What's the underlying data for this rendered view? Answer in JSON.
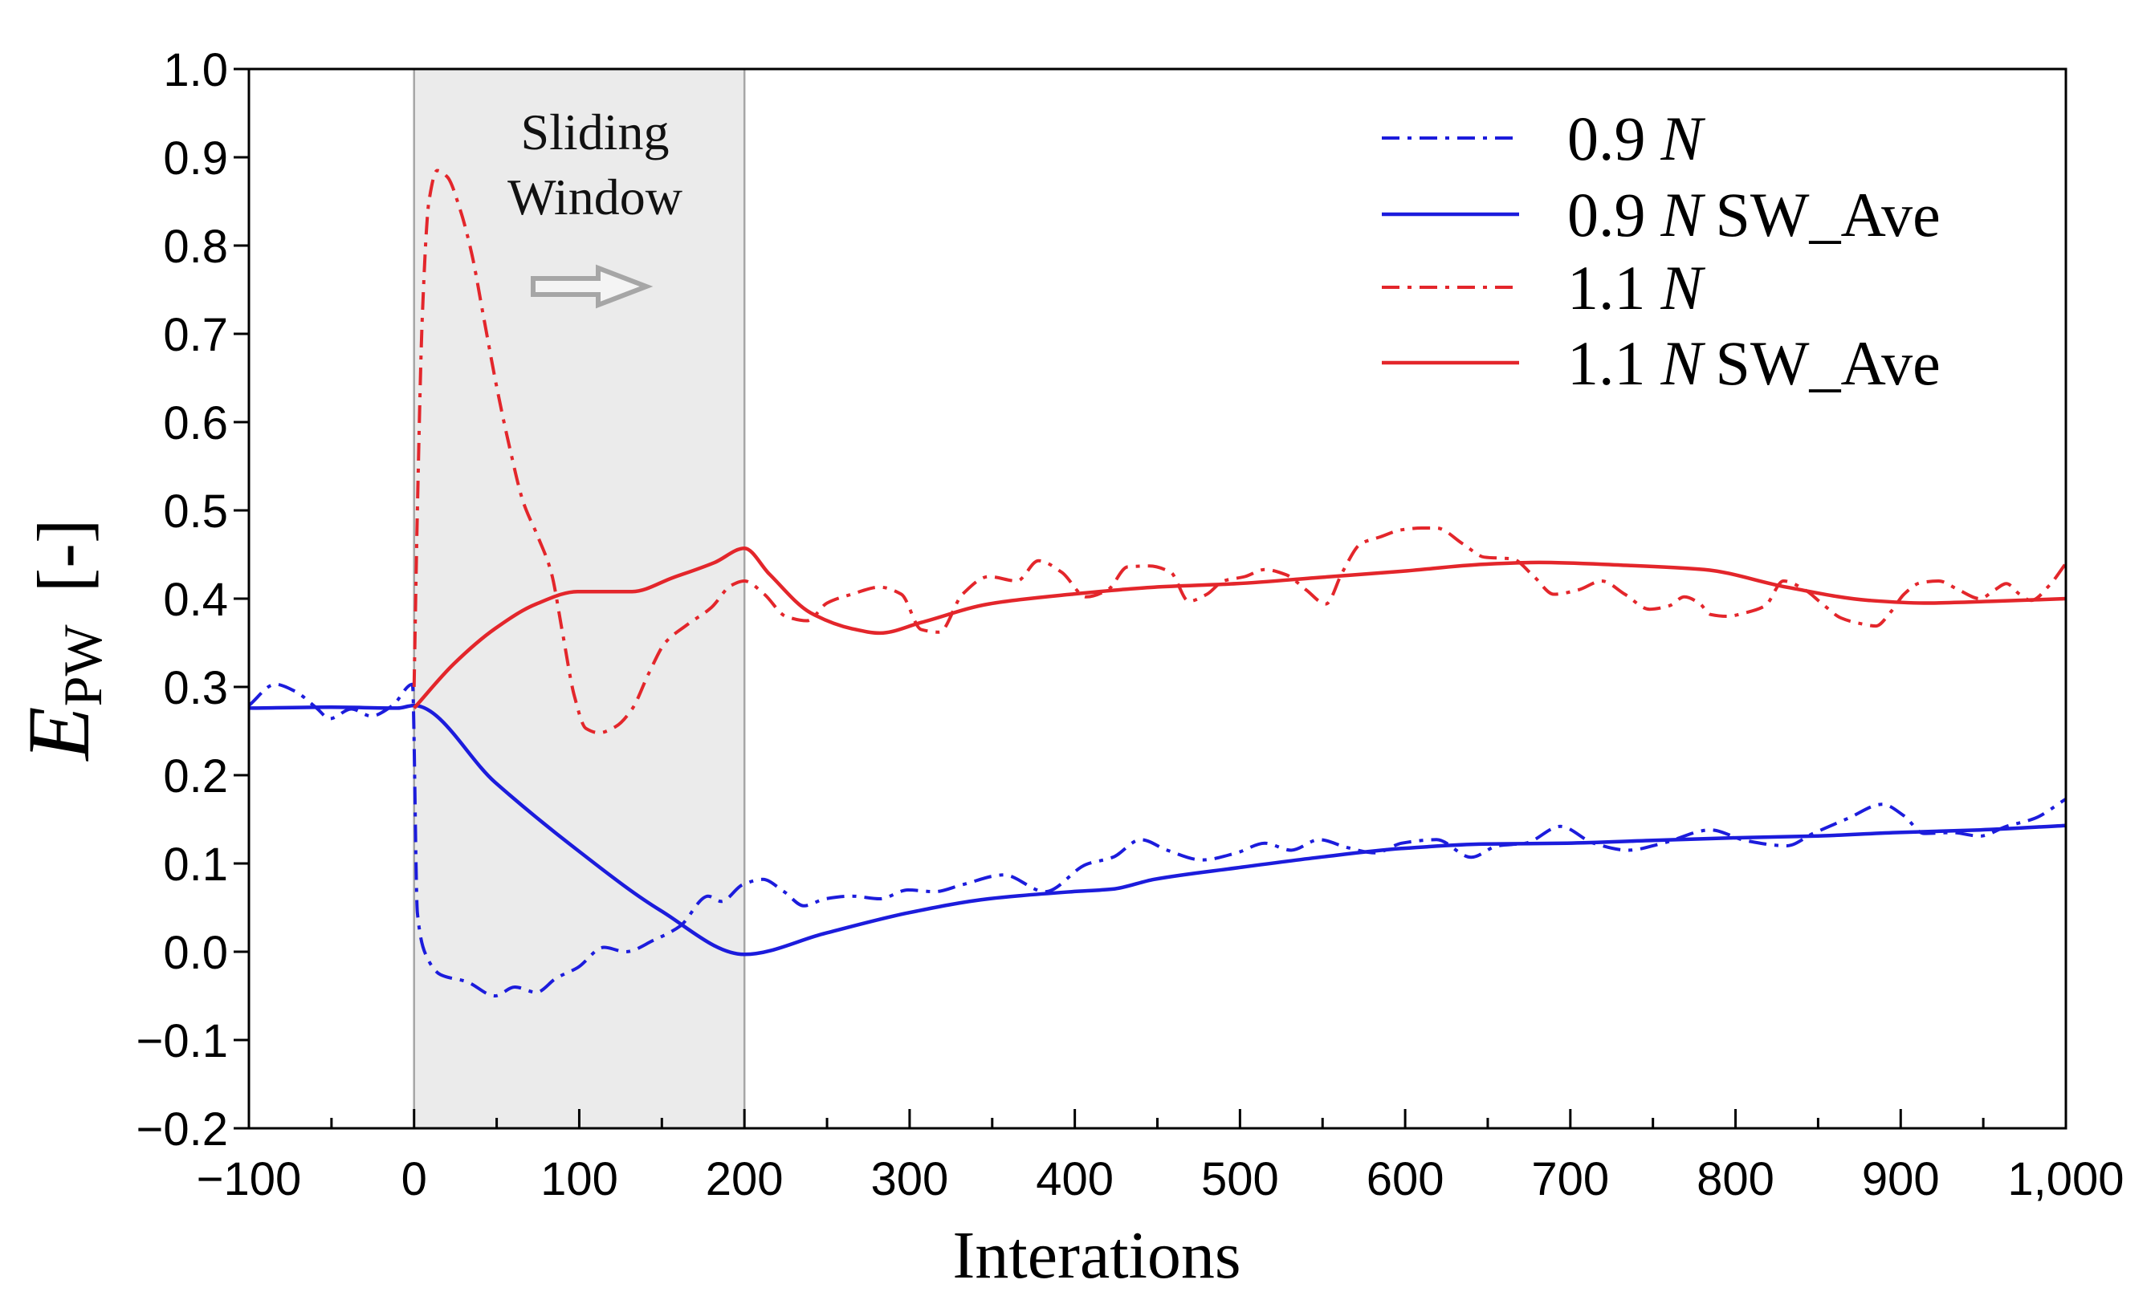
{
  "chart_data": {
    "type": "line",
    "xlabel": "Interations",
    "ylabel": {
      "symbol": "E",
      "subscript": "PW",
      "unit": "[-]"
    },
    "xlim": [
      -100,
      1000
    ],
    "ylim": [
      -0.2,
      1.0
    ],
    "grid": false,
    "legend_position": "top-right",
    "x_ticks": {
      "values": [
        -100,
        0,
        100,
        200,
        300,
        400,
        500,
        600,
        700,
        800,
        900,
        1000
      ],
      "labels": [
        "−100",
        "0",
        "100",
        "200",
        "300",
        "400",
        "500",
        "600",
        "700",
        "800",
        "900",
        "1,000"
      ]
    },
    "y_ticks": {
      "values": [
        -0.2,
        -0.1,
        0.0,
        0.1,
        0.2,
        0.3,
        0.4,
        0.5,
        0.6,
        0.7,
        0.8,
        0.9,
        1.0
      ],
      "labels": [
        "−0.2",
        "−0.1",
        "0.0",
        "0.1",
        "0.2",
        "0.3",
        "0.4",
        "0.5",
        "0.6",
        "0.7",
        "0.8",
        "0.9",
        "1.0"
      ]
    },
    "shaded_region": {
      "x": [
        0,
        200
      ],
      "fill": "#ebebeb",
      "border": "#a6a6a6",
      "label_lines": [
        "Sliding",
        "Window"
      ]
    },
    "series": [
      {
        "label_value": "0.9",
        "label_symbol": "N",
        "color": "#1c1cdc",
        "dashed": true,
        "x": [
          -100,
          -84,
          -72,
          -59,
          -51,
          -38,
          -26,
          -13,
          -1,
          2,
          7,
          16,
          32,
          49,
          61,
          74,
          86,
          99,
          115,
          128,
          145,
          161,
          178,
          186,
          199,
          211,
          224,
          236,
          249,
          265,
          282,
          299,
          315,
          332,
          357,
          382,
          407,
          423,
          440,
          456,
          477,
          498,
          515,
          531,
          548,
          565,
          582,
          598,
          619,
          640,
          656,
          673,
          694,
          714,
          735,
          756,
          785,
          806,
          831,
          847,
          868,
          889,
          902,
          914,
          931,
          948,
          964,
          981,
          1000
        ],
        "y": [
          0.279,
          0.303,
          0.295,
          0.276,
          0.264,
          0.275,
          0.267,
          0.279,
          0.303,
          0.044,
          -0.003,
          -0.026,
          -0.034,
          -0.05,
          -0.04,
          -0.046,
          -0.03,
          -0.018,
          0.005,
          0.0,
          0.013,
          0.029,
          0.063,
          0.057,
          0.076,
          0.082,
          0.068,
          0.052,
          0.06,
          0.063,
          0.06,
          0.07,
          0.068,
          0.076,
          0.087,
          0.068,
          0.099,
          0.107,
          0.127,
          0.115,
          0.104,
          0.112,
          0.123,
          0.115,
          0.127,
          0.118,
          0.112,
          0.123,
          0.127,
          0.107,
          0.12,
          0.123,
          0.142,
          0.123,
          0.115,
          0.123,
          0.138,
          0.126,
          0.12,
          0.134,
          0.151,
          0.167,
          0.154,
          0.134,
          0.135,
          0.131,
          0.142,
          0.151,
          0.173
        ]
      },
      {
        "label_value": "0.9",
        "label_symbol": "N",
        "label_suffix": "SW_Ave",
        "color": "#1c1cdc",
        "dashed": false,
        "x": [
          -100,
          -50,
          -10,
          0,
          49,
          99,
          149,
          200,
          249,
          299,
          348,
          398,
          423,
          448,
          498,
          548,
          598,
          648,
          698,
          748,
          798,
          847,
          897,
          948,
          1000
        ],
        "y": [
          0.276,
          0.277,
          0.276,
          0.279,
          0.192,
          0.115,
          0.047,
          -0.003,
          0.021,
          0.044,
          0.06,
          0.068,
          0.071,
          0.082,
          0.095,
          0.107,
          0.117,
          0.122,
          0.123,
          0.126,
          0.129,
          0.131,
          0.135,
          0.138,
          0.143
        ]
      },
      {
        "label_value": "1.1",
        "label_symbol": "N",
        "color": "#e3262b",
        "dashed": true,
        "x": [
          0,
          2,
          5,
          9,
          14,
          20,
          28,
          35,
          42,
          50,
          58,
          66,
          75,
          83,
          90,
          97,
          104,
          112,
          122,
          132,
          142,
          152,
          165,
          180,
          192,
          200,
          212,
          225,
          238,
          250,
          265,
          282,
          295,
          307,
          318,
          332,
          348,
          365,
          378,
          392,
          407,
          420,
          432,
          445,
          458,
          469,
          480,
          490,
          503,
          515,
          528,
          540,
          552,
          562,
          573,
          585,
          598,
          610,
          619,
          635,
          648,
          665,
          678,
          690,
          705,
          719,
          733,
          748,
          760,
          769,
          778,
          785,
          795,
          806,
          818,
          829,
          842,
          852,
          864,
          875,
          885,
          894,
          902,
          912,
          923,
          935,
          948,
          957,
          964,
          972,
          979,
          990,
          1000
        ],
        "y": [
          0.3,
          0.5,
          0.72,
          0.85,
          0.885,
          0.878,
          0.84,
          0.79,
          0.72,
          0.64,
          0.57,
          0.51,
          0.47,
          0.43,
          0.36,
          0.29,
          0.253,
          0.248,
          0.255,
          0.275,
          0.315,
          0.35,
          0.37,
          0.39,
          0.415,
          0.42,
          0.405,
          0.38,
          0.375,
          0.395,
          0.405,
          0.413,
          0.405,
          0.365,
          0.362,
          0.405,
          0.425,
          0.42,
          0.443,
          0.43,
          0.402,
          0.41,
          0.436,
          0.437,
          0.43,
          0.397,
          0.405,
          0.42,
          0.425,
          0.433,
          0.427,
          0.41,
          0.394,
          0.43,
          0.462,
          0.47,
          0.478,
          0.48,
          0.48,
          0.462,
          0.447,
          0.445,
          0.425,
          0.405,
          0.41,
          0.42,
          0.405,
          0.388,
          0.392,
          0.402,
          0.395,
          0.382,
          0.38,
          0.384,
          0.392,
          0.42,
          0.41,
          0.395,
          0.378,
          0.372,
          0.369,
          0.385,
          0.405,
          0.418,
          0.42,
          0.41,
          0.4,
          0.41,
          0.417,
          0.405,
          0.398,
          0.415,
          0.44
        ]
      },
      {
        "label_value": "1.1",
        "label_symbol": "N",
        "label_suffix": "SW_Ave",
        "color": "#e3262b",
        "dashed": false,
        "x": [
          0,
          24,
          49,
          74,
          99,
          132,
          157,
          182,
          200,
          215,
          240,
          265,
          282,
          307,
          348,
          398,
          448,
          498,
          548,
          598,
          648,
          681,
          731,
          781,
          831,
          881,
          914,
          956,
          1000
        ],
        "y": [
          0.276,
          0.326,
          0.366,
          0.394,
          0.408,
          0.408,
          0.424,
          0.441,
          0.457,
          0.428,
          0.384,
          0.366,
          0.361,
          0.373,
          0.394,
          0.405,
          0.413,
          0.417,
          0.424,
          0.431,
          0.439,
          0.441,
          0.438,
          0.433,
          0.413,
          0.398,
          0.395,
          0.397,
          0.4
        ]
      }
    ]
  }
}
